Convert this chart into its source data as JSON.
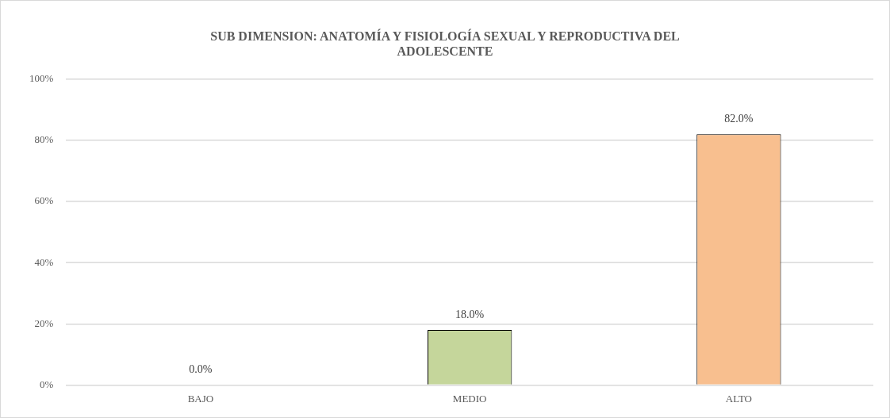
{
  "chart_data": {
    "type": "bar",
    "title": "SUB DIMENSION: ANATOMÍA Y FISIOLOGÍA SEXUAL Y REPRODUCTIVA DEL ADOLESCENTE",
    "categories": [
      "BAJO",
      "MEDIO",
      "ALTO"
    ],
    "values": [
      0,
      18,
      82
    ],
    "colors": [
      "#9dc3e6",
      "#c5d69b",
      "#f8bf8f"
    ],
    "value_labels": [
      "0.0%",
      "18.0%",
      "82.0%"
    ],
    "ylim": [
      0,
      100
    ],
    "yticks": [
      {
        "value": 0,
        "label": "0%"
      },
      {
        "value": 20,
        "label": "20%"
      },
      {
        "value": 40,
        "label": "40%"
      },
      {
        "value": 60,
        "label": "60%"
      },
      {
        "value": 80,
        "label": "80%"
      },
      {
        "value": 100,
        "label": "100%"
      }
    ],
    "grid": "y",
    "legend": false
  }
}
